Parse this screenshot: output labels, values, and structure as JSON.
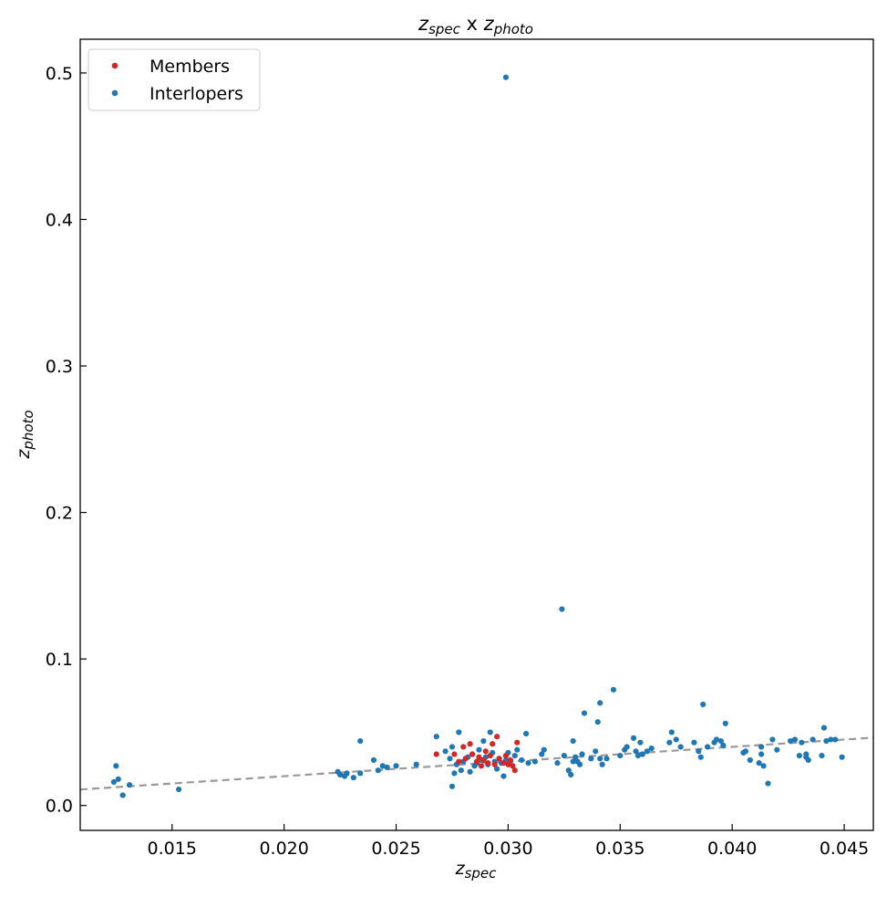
{
  "chart_data": {
    "type": "scatter",
    "title": {
      "main": "z",
      "sub1": "spec",
      "mid": " x ",
      "main2": "z",
      "sub2": "photo"
    },
    "xlabel": {
      "main": "z",
      "sub": "spec"
    },
    "ylabel": {
      "main": "z",
      "sub": "photo"
    },
    "xlim": [
      0.0109,
      0.0463
    ],
    "ylim": [
      -0.017,
      0.523
    ],
    "xticks": [
      0.015,
      0.02,
      0.025,
      0.03,
      0.035,
      0.04,
      0.045
    ],
    "xtick_labels": [
      "0.015",
      "0.020",
      "0.025",
      "0.030",
      "0.035",
      "0.040",
      "0.045"
    ],
    "yticks": [
      0.0,
      0.1,
      0.2,
      0.3,
      0.4,
      0.5
    ],
    "ytick_labels": [
      "0.0",
      "0.1",
      "0.2",
      "0.3",
      "0.4",
      "0.5"
    ],
    "reference_line": {
      "style": "dashed",
      "color": "#999999",
      "relation": "y = x"
    },
    "legend": {
      "placement": "top-left"
    },
    "series": [
      {
        "name": "Members",
        "color": "#d62728",
        "points": [
          [
            0.0268,
            0.035
          ],
          [
            0.0276,
            0.035
          ],
          [
            0.0278,
            0.03
          ],
          [
            0.028,
            0.04
          ],
          [
            0.0281,
            0.032
          ],
          [
            0.0283,
            0.042
          ],
          [
            0.0284,
            0.035
          ],
          [
            0.0286,
            0.03
          ],
          [
            0.0287,
            0.033
          ],
          [
            0.0288,
            0.027
          ],
          [
            0.0289,
            0.031
          ],
          [
            0.029,
            0.037
          ],
          [
            0.0291,
            0.029
          ],
          [
            0.0292,
            0.034
          ],
          [
            0.0293,
            0.042
          ],
          [
            0.0294,
            0.028
          ],
          [
            0.0295,
            0.047
          ],
          [
            0.0296,
            0.032
          ],
          [
            0.0298,
            0.029
          ],
          [
            0.0299,
            0.034
          ],
          [
            0.03,
            0.028
          ],
          [
            0.0301,
            0.031
          ],
          [
            0.0302,
            0.027
          ],
          [
            0.0303,
            0.024
          ],
          [
            0.0304,
            0.043
          ]
        ]
      },
      {
        "name": "Interlopers",
        "color": "#1f77b4",
        "points": [
          [
            0.0124,
            0.016
          ],
          [
            0.0125,
            0.027
          ],
          [
            0.0126,
            0.018
          ],
          [
            0.0128,
            0.007
          ],
          [
            0.0131,
            0.014
          ],
          [
            0.0153,
            0.011
          ],
          [
            0.0224,
            0.023
          ],
          [
            0.0225,
            0.021
          ],
          [
            0.0227,
            0.02
          ],
          [
            0.0228,
            0.022
          ],
          [
            0.0231,
            0.019
          ],
          [
            0.0234,
            0.022
          ],
          [
            0.0234,
            0.044
          ],
          [
            0.024,
            0.031
          ],
          [
            0.0242,
            0.024
          ],
          [
            0.0244,
            0.027
          ],
          [
            0.0246,
            0.026
          ],
          [
            0.025,
            0.027
          ],
          [
            0.0259,
            0.028
          ],
          [
            0.0268,
            0.047
          ],
          [
            0.0272,
            0.037
          ],
          [
            0.0274,
            0.032
          ],
          [
            0.0275,
            0.013
          ],
          [
            0.0275,
            0.04
          ],
          [
            0.0276,
            0.022
          ],
          [
            0.0277,
            0.028
          ],
          [
            0.0278,
            0.05
          ],
          [
            0.0279,
            0.024
          ],
          [
            0.028,
            0.03
          ],
          [
            0.0282,
            0.033
          ],
          [
            0.0283,
            0.023
          ],
          [
            0.0284,
            0.035
          ],
          [
            0.0285,
            0.027
          ],
          [
            0.0286,
            0.029
          ],
          [
            0.0287,
            0.038
          ],
          [
            0.0288,
            0.031
          ],
          [
            0.0289,
            0.044
          ],
          [
            0.029,
            0.033
          ],
          [
            0.0291,
            0.028
          ],
          [
            0.0292,
            0.05
          ],
          [
            0.0293,
            0.036
          ],
          [
            0.0294,
            0.03
          ],
          [
            0.0295,
            0.025
          ],
          [
            0.0296,
            0.032
          ],
          [
            0.0297,
            0.029
          ],
          [
            0.0298,
            0.02
          ],
          [
            0.0299,
            0.031
          ],
          [
            0.03,
            0.036
          ],
          [
            0.0301,
            0.03
          ],
          [
            0.0303,
            0.034
          ],
          [
            0.0304,
            0.038
          ],
          [
            0.0306,
            0.031
          ],
          [
            0.0308,
            0.049
          ],
          [
            0.0309,
            0.029
          ],
          [
            0.0299,
            0.497
          ],
          [
            0.0312,
            0.03
          ],
          [
            0.0315,
            0.035
          ],
          [
            0.0316,
            0.038
          ],
          [
            0.0322,
            0.029
          ],
          [
            0.0324,
            0.134
          ],
          [
            0.0325,
            0.034
          ],
          [
            0.0327,
            0.024
          ],
          [
            0.0328,
            0.021
          ],
          [
            0.0329,
            0.03
          ],
          [
            0.0329,
            0.044
          ],
          [
            0.033,
            0.033
          ],
          [
            0.0331,
            0.03
          ],
          [
            0.0332,
            0.028
          ],
          [
            0.0333,
            0.035
          ],
          [
            0.0334,
            0.063
          ],
          [
            0.0337,
            0.032
          ],
          [
            0.0339,
            0.037
          ],
          [
            0.034,
            0.057
          ],
          [
            0.0341,
            0.032
          ],
          [
            0.0341,
            0.07
          ],
          [
            0.0342,
            0.028
          ],
          [
            0.0344,
            0.032
          ],
          [
            0.0347,
            0.079
          ],
          [
            0.035,
            0.034
          ],
          [
            0.0352,
            0.038
          ],
          [
            0.0353,
            0.04
          ],
          [
            0.0356,
            0.046
          ],
          [
            0.0357,
            0.037
          ],
          [
            0.0358,
            0.034
          ],
          [
            0.0359,
            0.043
          ],
          [
            0.036,
            0.035
          ],
          [
            0.0362,
            0.037
          ],
          [
            0.0364,
            0.039
          ],
          [
            0.0372,
            0.043
          ],
          [
            0.0373,
            0.05
          ],
          [
            0.0375,
            0.045
          ],
          [
            0.0377,
            0.04
          ],
          [
            0.0383,
            0.043
          ],
          [
            0.0385,
            0.037
          ],
          [
            0.0386,
            0.033
          ],
          [
            0.0387,
            0.069
          ],
          [
            0.0389,
            0.04
          ],
          [
            0.0392,
            0.043
          ],
          [
            0.0393,
            0.045
          ],
          [
            0.0395,
            0.044
          ],
          [
            0.0396,
            0.041
          ],
          [
            0.0397,
            0.056
          ],
          [
            0.0405,
            0.036
          ],
          [
            0.0406,
            0.037
          ],
          [
            0.0408,
            0.031
          ],
          [
            0.0412,
            0.029
          ],
          [
            0.0413,
            0.04
          ],
          [
            0.0413,
            0.035
          ],
          [
            0.0414,
            0.027
          ],
          [
            0.0416,
            0.015
          ],
          [
            0.0418,
            0.045
          ],
          [
            0.042,
            0.038
          ],
          [
            0.0426,
            0.044
          ],
          [
            0.0428,
            0.045
          ],
          [
            0.043,
            0.034
          ],
          [
            0.0431,
            0.043
          ],
          [
            0.0433,
            0.035
          ],
          [
            0.0433,
            0.033
          ],
          [
            0.0434,
            0.031
          ],
          [
            0.0436,
            0.045
          ],
          [
            0.044,
            0.034
          ],
          [
            0.0441,
            0.053
          ],
          [
            0.0442,
            0.044
          ],
          [
            0.0444,
            0.045
          ],
          [
            0.0446,
            0.045
          ],
          [
            0.0449,
            0.033
          ]
        ]
      }
    ]
  }
}
